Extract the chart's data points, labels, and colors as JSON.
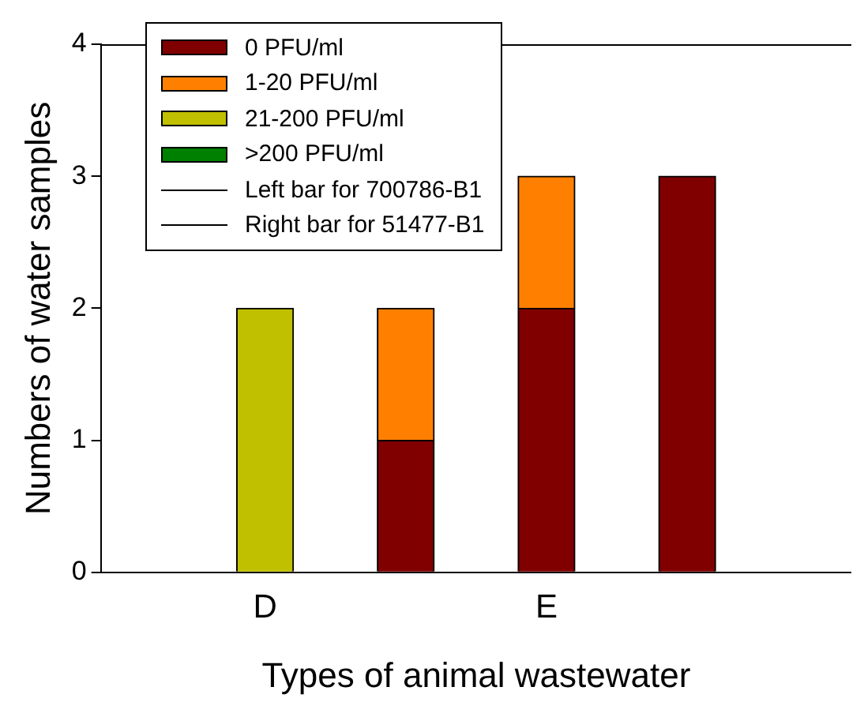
{
  "chart_data": {
    "type": "bar",
    "stacked": true,
    "xlabel": "Types of animal wastewater",
    "ylabel": "Numbers of water samples",
    "categories": [
      "D",
      null,
      "E",
      null
    ],
    "series": [
      {
        "name": "0 PFU/ml",
        "color": "#800000",
        "values": [
          null,
          1,
          2,
          3
        ]
      },
      {
        "name": "1-20 PFU/ml",
        "color": "#ff8000",
        "values": [
          null,
          1,
          1,
          null
        ]
      },
      {
        "name": "21-200 PFU/ml",
        "color": "#c0c000",
        "values": [
          2,
          null,
          null,
          null
        ]
      },
      {
        "name": ">200 PFU/ml",
        "color": "#008000",
        "values": [
          null,
          null,
          null,
          null
        ]
      },
      {
        "name": "Left bar for 700786-B1",
        "type": "line",
        "color": "#000000",
        "values": [
          null,
          null,
          null,
          null
        ]
      },
      {
        "name": "Right bar for 51477-B1",
        "type": "line",
        "color": "#000000",
        "values": [
          null,
          null,
          null,
          null
        ]
      }
    ],
    "ylim": [
      0,
      4
    ],
    "yticks": [
      0,
      1,
      2,
      3,
      4
    ],
    "grid": false,
    "legend": "top left"
  }
}
